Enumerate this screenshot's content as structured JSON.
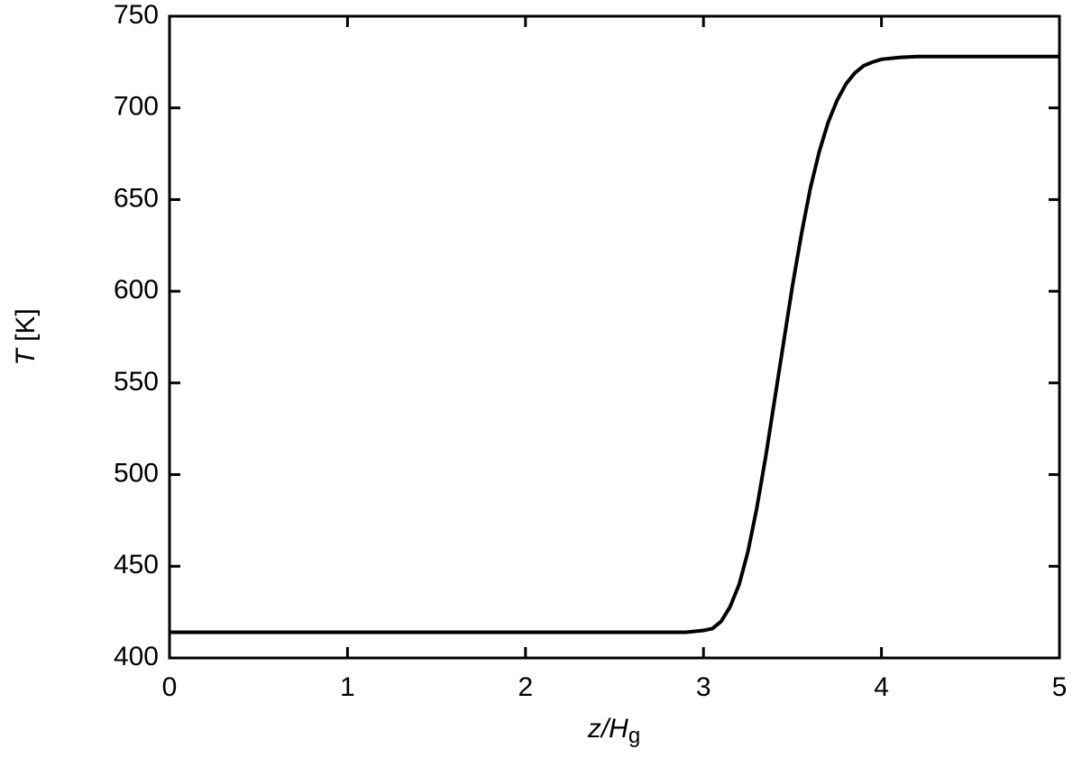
{
  "chart_data": {
    "type": "line",
    "xlabel": "z/Hg",
    "ylabel": "T [K]",
    "x": [
      0,
      0.5,
      1,
      1.5,
      2,
      2.5,
      2.9,
      3.0,
      3.05,
      3.1,
      3.15,
      3.2,
      3.25,
      3.3,
      3.35,
      3.4,
      3.45,
      3.5,
      3.55,
      3.6,
      3.65,
      3.7,
      3.75,
      3.8,
      3.85,
      3.9,
      3.95,
      4.0,
      4.1,
      4.2,
      4.3,
      4.5,
      4.75,
      5
    ],
    "values": [
      414,
      414,
      414,
      414,
      414,
      414,
      414,
      415,
      416,
      420,
      428,
      440,
      458,
      482,
      510,
      541,
      572,
      603,
      631,
      656,
      676,
      692,
      704,
      713,
      719,
      723,
      725,
      726.5,
      727.5,
      728,
      728,
      728,
      728,
      728
    ],
    "color": "#000000",
    "xlim": [
      0,
      5
    ],
    "xticks": [
      0,
      1,
      2,
      3,
      4,
      5
    ],
    "ylim": [
      400,
      750
    ],
    "yticks": [
      400,
      450,
      500,
      550,
      600,
      650,
      700,
      750
    ],
    "grid": false
  }
}
